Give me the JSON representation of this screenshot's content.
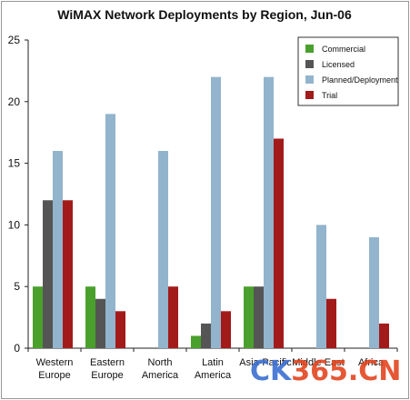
{
  "chart_data": {
    "type": "bar",
    "title": "WiMAX Network Deployments by Region, Jun-06",
    "xlabel": "",
    "ylabel": "",
    "ylim": [
      0,
      25
    ],
    "yticks": [
      0,
      5,
      10,
      15,
      20,
      25
    ],
    "grid": false,
    "legend_position": "top-right",
    "categories": [
      [
        "Western",
        "Europe"
      ],
      [
        "Eastern",
        "Europe"
      ],
      [
        "North",
        "America"
      ],
      [
        "Latin",
        "America"
      ],
      [
        "Asia-Pacific",
        ""
      ],
      [
        "Middle East",
        ""
      ],
      [
        "Africa",
        ""
      ]
    ],
    "series": [
      {
        "name": "Commercial",
        "color": "#4aa02c",
        "values": [
          5,
          5,
          0,
          1,
          5,
          0,
          0
        ]
      },
      {
        "name": "Licensed",
        "color": "#555555",
        "values": [
          12,
          4,
          0,
          2,
          5,
          0,
          0
        ]
      },
      {
        "name": "Planned/Deployment",
        "color": "#92b4cc",
        "values": [
          16,
          19,
          16,
          22,
          22,
          10,
          9
        ]
      },
      {
        "name": "Trial",
        "color": "#a31a1a",
        "values": [
          12,
          3,
          5,
          3,
          17,
          4,
          2
        ]
      }
    ]
  },
  "watermark": {
    "text": "CK365.CN",
    "colors": [
      "#3b6fd0",
      "#e2451f"
    ]
  }
}
